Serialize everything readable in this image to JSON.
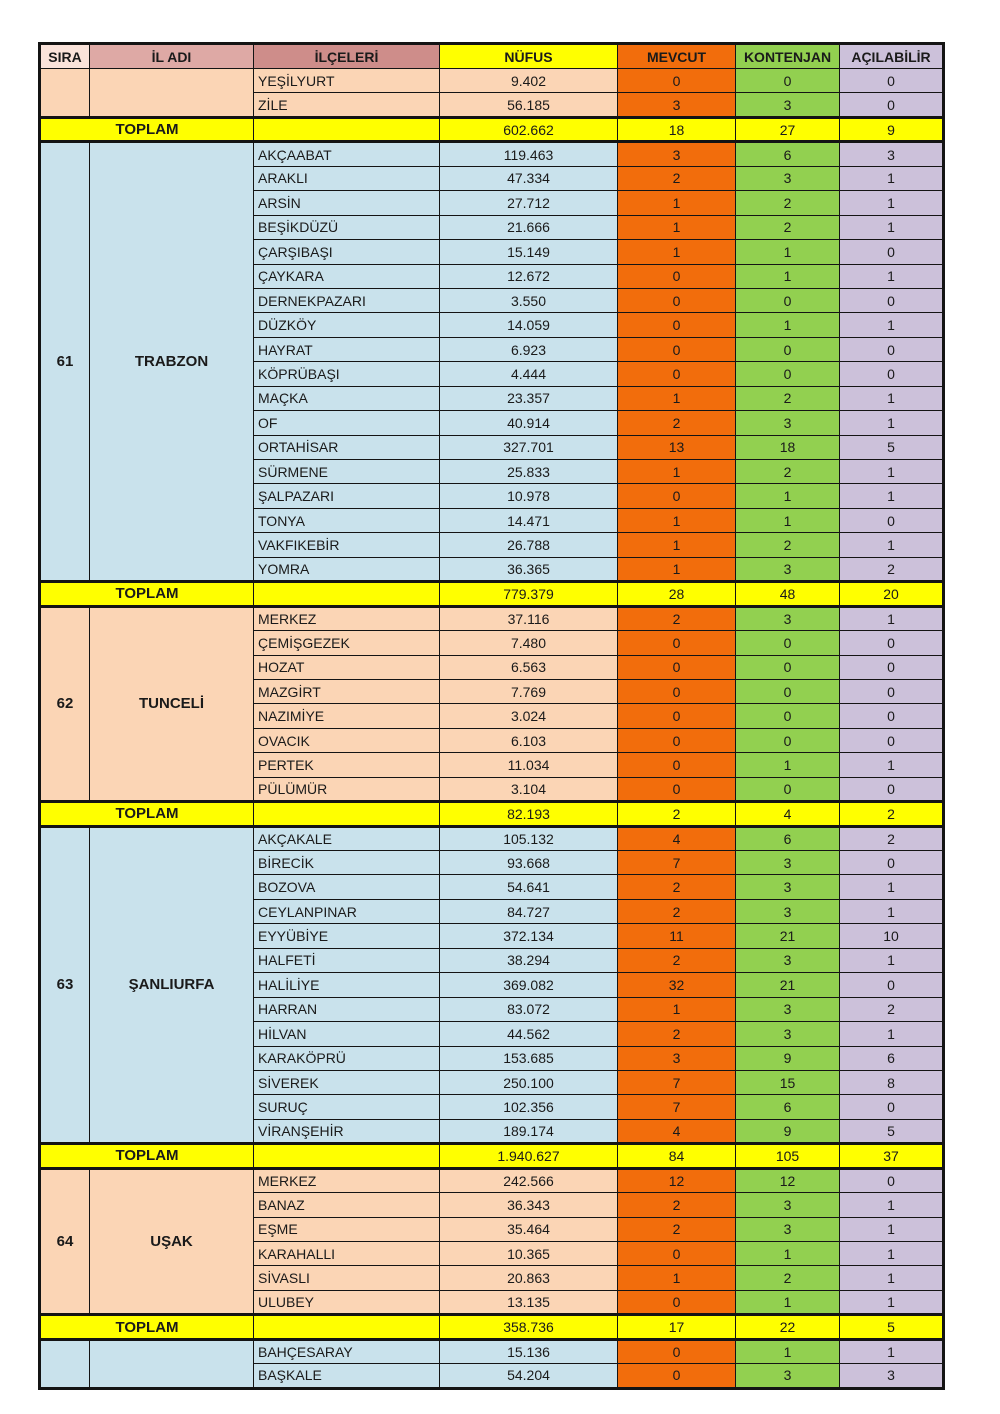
{
  "colors": {
    "header_sira_bg": "#FAE3DA",
    "header_il_bg": "#DEA9A5",
    "header_ilce_bg": "#CE8D8A",
    "yellow": "#FFFF00",
    "orange": "#F26D0C",
    "green": "#92D050",
    "lavender": "#CCC1DA",
    "blue": "#C9E2EC",
    "peach": "#FBD5B5",
    "border": "#141414",
    "text": "#1A1A1A"
  },
  "table": {
    "headers": [
      "SIRA",
      "İL ADI",
      "İLÇELERİ",
      "NÜFUS",
      "MEVCUT",
      "KONTENJAN",
      "AÇILABİLİR"
    ],
    "toplam_label": "TOPLAM",
    "blocks": [
      {
        "sira": "",
        "il": "",
        "scheme": "peach",
        "rows": [
          [
            "YEŞİLYURT",
            "9.402",
            "0",
            "0",
            "0"
          ],
          [
            "ZİLE",
            "56.185",
            "3",
            "3",
            "0"
          ]
        ],
        "toplam": [
          "602.662",
          "18",
          "27",
          "9"
        ]
      },
      {
        "sira": "61",
        "il": "TRABZON",
        "scheme": "blue",
        "rows": [
          [
            "AKÇAABAT",
            "119.463",
            "3",
            "6",
            "3"
          ],
          [
            "ARAKLI",
            "47.334",
            "2",
            "3",
            "1"
          ],
          [
            "ARSİN",
            "27.712",
            "1",
            "2",
            "1"
          ],
          [
            "BEŞİKDÜZÜ",
            "21.666",
            "1",
            "2",
            "1"
          ],
          [
            "ÇARŞIBAŞI",
            "15.149",
            "1",
            "1",
            "0"
          ],
          [
            "ÇAYKARA",
            "12.672",
            "0",
            "1",
            "1"
          ],
          [
            "DERNEKPAZARI",
            "3.550",
            "0",
            "0",
            "0"
          ],
          [
            "DÜZKÖY",
            "14.059",
            "0",
            "1",
            "1"
          ],
          [
            "HAYRAT",
            "6.923",
            "0",
            "0",
            "0"
          ],
          [
            "KÖPRÜBAŞI",
            "4.444",
            "0",
            "0",
            "0"
          ],
          [
            "MAÇKA",
            "23.357",
            "1",
            "2",
            "1"
          ],
          [
            "OF",
            "40.914",
            "2",
            "3",
            "1"
          ],
          [
            "ORTAHİSAR",
            "327.701",
            "13",
            "18",
            "5"
          ],
          [
            "SÜRMENE",
            "25.833",
            "1",
            "2",
            "1"
          ],
          [
            "ŞALPAZARI",
            "10.978",
            "0",
            "1",
            "1"
          ],
          [
            "TONYA",
            "14.471",
            "1",
            "1",
            "0"
          ],
          [
            "VAKFIKEBİR",
            "26.788",
            "1",
            "2",
            "1"
          ],
          [
            "YOMRA",
            "36.365",
            "1",
            "3",
            "2"
          ]
        ],
        "toplam": [
          "779.379",
          "28",
          "48",
          "20"
        ]
      },
      {
        "sira": "62",
        "il": "TUNCELİ",
        "scheme": "peach",
        "rows": [
          [
            "MERKEZ",
            "37.116",
            "2",
            "3",
            "1"
          ],
          [
            "ÇEMİŞGEZEK",
            "7.480",
            "0",
            "0",
            "0"
          ],
          [
            "HOZAT",
            "6.563",
            "0",
            "0",
            "0"
          ],
          [
            "MAZGİRT",
            "7.769",
            "0",
            "0",
            "0"
          ],
          [
            "NAZIMİYE",
            "3.024",
            "0",
            "0",
            "0"
          ],
          [
            "OVACIK",
            "6.103",
            "0",
            "0",
            "0"
          ],
          [
            "PERTEK",
            "11.034",
            "0",
            "1",
            "1"
          ],
          [
            "PÜLÜMÜR",
            "3.104",
            "0",
            "0",
            "0"
          ]
        ],
        "toplam": [
          "82.193",
          "2",
          "4",
          "2"
        ]
      },
      {
        "sira": "63",
        "il": "ŞANLIURFA",
        "scheme": "blue",
        "rows": [
          [
            "AKÇAKALE",
            "105.132",
            "4",
            "6",
            "2"
          ],
          [
            "BİRECİK",
            "93.668",
            "7",
            "3",
            "0"
          ],
          [
            "BOZOVA",
            "54.641",
            "2",
            "3",
            "1"
          ],
          [
            "CEYLANPINAR",
            "84.727",
            "2",
            "3",
            "1"
          ],
          [
            "EYYÜBİYE",
            "372.134",
            "11",
            "21",
            "10"
          ],
          [
            "HALFETİ",
            "38.294",
            "2",
            "3",
            "1"
          ],
          [
            "HALİLİYE",
            "369.082",
            "32",
            "21",
            "0"
          ],
          [
            "HARRAN",
            "83.072",
            "1",
            "3",
            "2"
          ],
          [
            "HİLVAN",
            "44.562",
            "2",
            "3",
            "1"
          ],
          [
            "KARAKÖPRÜ",
            "153.685",
            "3",
            "9",
            "6"
          ],
          [
            "SİVEREK",
            "250.100",
            "7",
            "15",
            "8"
          ],
          [
            "SURUÇ",
            "102.356",
            "7",
            "6",
            "0"
          ],
          [
            "VİRANŞEHİR",
            "189.174",
            "4",
            "9",
            "5"
          ]
        ],
        "toplam": [
          "1.940.627",
          "84",
          "105",
          "37"
        ]
      },
      {
        "sira": "64",
        "il": "UŞAK",
        "scheme": "peach",
        "rows": [
          [
            "MERKEZ",
            "242.566",
            "12",
            "12",
            "0"
          ],
          [
            "BANAZ",
            "36.343",
            "2",
            "3",
            "1"
          ],
          [
            "EŞME",
            "35.464",
            "2",
            "3",
            "1"
          ],
          [
            "KARAHALLI",
            "10.365",
            "0",
            "1",
            "1"
          ],
          [
            "SİVASLI",
            "20.863",
            "1",
            "2",
            "1"
          ],
          [
            "ULUBEY",
            "13.135",
            "0",
            "1",
            "1"
          ]
        ],
        "toplam": [
          "358.736",
          "17",
          "22",
          "5"
        ]
      },
      {
        "sira": "",
        "il": "",
        "scheme": "blue",
        "rows": [
          [
            "BAHÇESARAY",
            "15.136",
            "0",
            "1",
            "1"
          ],
          [
            "BAŞKALE",
            "54.204",
            "0",
            "3",
            "3"
          ]
        ],
        "toplam": null
      }
    ]
  }
}
